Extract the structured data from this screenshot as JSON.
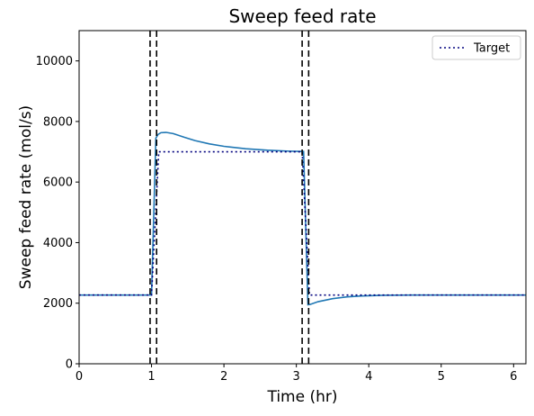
{
  "chart_data": {
    "type": "line",
    "title": "Sweep feed rate",
    "xlabel": "Time (hr)",
    "ylabel": "Sweep feed rate (mol/s)",
    "xlim": [
      0,
      6.17
    ],
    "ylim": [
      0,
      11000
    ],
    "xticks": [
      0,
      1,
      2,
      3,
      4,
      5,
      6
    ],
    "yticks": [
      0,
      2000,
      4000,
      6000,
      8000,
      10000
    ],
    "grid": false,
    "legend": {
      "position": "top-right",
      "entries": [
        "Target"
      ]
    },
    "series": [
      {
        "role": "actual",
        "color": "#1f77b4",
        "style": "solid",
        "x": [
          0,
          0.5,
          0.98,
          1.0,
          1.06,
          1.09,
          1.13,
          1.2,
          1.3,
          1.45,
          1.6,
          1.8,
          2.0,
          2.3,
          2.6,
          2.9,
          3.08,
          3.1,
          3.16,
          3.19,
          3.3,
          3.5,
          3.7,
          3.9,
          4.2,
          4.6,
          5.0,
          5.5,
          6.17
        ],
        "y": [
          2270,
          2270,
          2270,
          2270,
          7450,
          7570,
          7630,
          7640,
          7600,
          7480,
          7370,
          7260,
          7180,
          7100,
          7050,
          7020,
          7010,
          7010,
          1950,
          1960,
          2050,
          2150,
          2210,
          2240,
          2260,
          2270,
          2270,
          2270,
          2270
        ]
      },
      {
        "name": "Target",
        "color": "#00007f",
        "style": "dotted",
        "x": [
          0,
          1.0,
          1.1,
          3.08,
          3.18,
          6.17
        ],
        "y": [
          2270,
          2270,
          7000,
          7000,
          2270,
          2270
        ]
      }
    ],
    "vlines": {
      "color": "#000000",
      "style": "dashed",
      "x": [
        0.98,
        1.07,
        3.08,
        3.17
      ]
    }
  }
}
